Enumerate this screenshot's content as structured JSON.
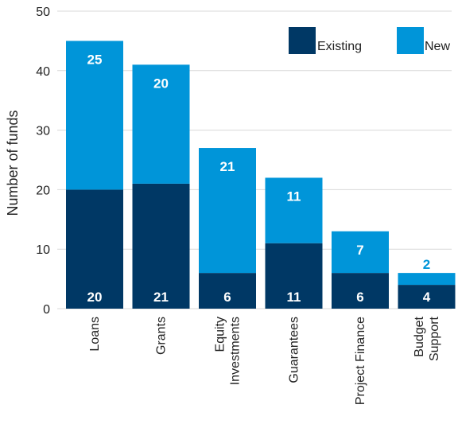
{
  "chart_data": {
    "type": "bar",
    "stacked": true,
    "ylabel": "Number of funds",
    "xlabel": "",
    "ylim": [
      0,
      50
    ],
    "yticks": [
      0,
      10,
      20,
      30,
      40,
      50
    ],
    "grid": true,
    "legend_position": "top-right",
    "categories": [
      [
        "Loans"
      ],
      [
        "Grants"
      ],
      [
        "Equity",
        "Investments"
      ],
      [
        "Guarantees"
      ],
      [
        "Project Finance"
      ],
      [
        "Budget",
        "Support"
      ]
    ],
    "series": [
      {
        "name": "Existing",
        "color": "#003865",
        "label_color": "#ffffff",
        "values": [
          20,
          21,
          6,
          11,
          6,
          4
        ]
      },
      {
        "name": "New",
        "color": "#0095d9",
        "label_color": "#ffffff",
        "values": [
          25,
          20,
          21,
          11,
          7,
          2
        ]
      }
    ],
    "small_label_color": "#0095d9"
  }
}
